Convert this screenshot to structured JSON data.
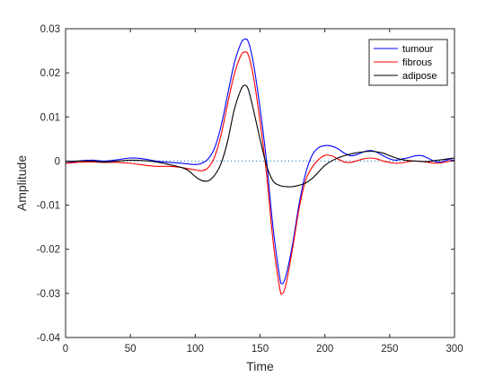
{
  "chart_data": {
    "type": "line",
    "title": "",
    "xlabel": "Time",
    "ylabel": "Amplitude",
    "xlim": [
      0,
      300
    ],
    "ylim": [
      -0.04,
      0.03
    ],
    "xticks": [
      0,
      50,
      100,
      150,
      200,
      250,
      300
    ],
    "xtick_labels": [
      "0",
      "50",
      "100",
      "150",
      "200",
      "250",
      "300"
    ],
    "yticks": [
      -0.04,
      -0.03,
      -0.02,
      -0.01,
      0,
      0.01,
      0.02,
      0.03
    ],
    "ytick_labels": [
      "-0.04",
      "-0.03",
      "-0.02",
      "-0.01",
      "0",
      "0.01",
      "0.02",
      "0.03"
    ],
    "grid": false,
    "legend_position": "top-right",
    "reference_line": {
      "y": 0,
      "style": "dotted",
      "color": "#0072BD"
    },
    "series": [
      {
        "name": "tumour",
        "color": "#0000FF",
        "points": [
          [
            0,
            -0.0005
          ],
          [
            10,
            0
          ],
          [
            20,
            0.0002
          ],
          [
            30,
            0
          ],
          [
            40,
            0.0003
          ],
          [
            50,
            0.0007
          ],
          [
            60,
            0.0005
          ],
          [
            70,
            0
          ],
          [
            80,
            -0.0003
          ],
          [
            90,
            -0.0005
          ],
          [
            100,
            -0.0008
          ],
          [
            105,
            -0.0005
          ],
          [
            110,
            0.0005
          ],
          [
            115,
            0.003
          ],
          [
            120,
            0.008
          ],
          [
            125,
            0.015
          ],
          [
            130,
            0.022
          ],
          [
            135,
            0.0265
          ],
          [
            138,
            0.0276
          ],
          [
            141,
            0.027
          ],
          [
            145,
            0.022
          ],
          [
            150,
            0.012
          ],
          [
            155,
            0
          ],
          [
            160,
            -0.015
          ],
          [
            165,
            -0.026
          ],
          [
            167,
            -0.0278
          ],
          [
            170,
            -0.026
          ],
          [
            175,
            -0.019
          ],
          [
            180,
            -0.01
          ],
          [
            185,
            -0.003
          ],
          [
            190,
            0.0012
          ],
          [
            195,
            0.003
          ],
          [
            200,
            0.0035
          ],
          [
            205,
            0.0034
          ],
          [
            210,
            0.0028
          ],
          [
            215,
            0.0018
          ],
          [
            220,
            0.0012
          ],
          [
            225,
            0.0015
          ],
          [
            230,
            0.0021
          ],
          [
            235,
            0.0024
          ],
          [
            240,
            0.002
          ],
          [
            245,
            0.0012
          ],
          [
            250,
            0.0005
          ],
          [
            255,
            0.0002
          ],
          [
            260,
            0.0005
          ],
          [
            265,
            0.0008
          ],
          [
            270,
            0.0012
          ],
          [
            275,
            0.0012
          ],
          [
            280,
            0.0006
          ],
          [
            285,
            -0.0001
          ],
          [
            290,
            -0.0002
          ],
          [
            295,
            0.0003
          ],
          [
            300,
            0.0002
          ]
        ]
      },
      {
        "name": "fibrous",
        "color": "#FF0000",
        "points": [
          [
            0,
            -0.0005
          ],
          [
            10,
            -0.0003
          ],
          [
            20,
            -0.0002
          ],
          [
            30,
            -0.0003
          ],
          [
            40,
            -0.0003
          ],
          [
            50,
            -0.0005
          ],
          [
            60,
            -0.0009
          ],
          [
            70,
            -0.0012
          ],
          [
            80,
            -0.0012
          ],
          [
            90,
            -0.0015
          ],
          [
            100,
            -0.002
          ],
          [
            105,
            -0.0022
          ],
          [
            110,
            -0.0015
          ],
          [
            115,
            0.001
          ],
          [
            120,
            0.006
          ],
          [
            125,
            0.013
          ],
          [
            130,
            0.0195
          ],
          [
            135,
            0.0238
          ],
          [
            138,
            0.0247
          ],
          [
            141,
            0.024
          ],
          [
            145,
            0.019
          ],
          [
            150,
            0.009
          ],
          [
            155,
            -0.003
          ],
          [
            160,
            -0.018
          ],
          [
            165,
            -0.0285
          ],
          [
            167,
            -0.0301
          ],
          [
            170,
            -0.028
          ],
          [
            175,
            -0.02
          ],
          [
            180,
            -0.011
          ],
          [
            185,
            -0.0045
          ],
          [
            190,
            -0.0015
          ],
          [
            195,
            0.0003
          ],
          [
            200,
            0.0013
          ],
          [
            205,
            0.0012
          ],
          [
            210,
            0.0005
          ],
          [
            215,
            -0.0002
          ],
          [
            220,
            -0.0003
          ],
          [
            225,
            0.0001
          ],
          [
            230,
            0.0005
          ],
          [
            235,
            0.0007
          ],
          [
            240,
            0.0005
          ],
          [
            245,
            0
          ],
          [
            250,
            -0.0003
          ],
          [
            255,
            -0.0005
          ],
          [
            260,
            -0.0004
          ],
          [
            265,
            -0.0001
          ],
          [
            270,
            0
          ],
          [
            275,
            -0.0001
          ],
          [
            280,
            -0.0003
          ],
          [
            285,
            -0.0005
          ],
          [
            290,
            -0.0004
          ],
          [
            295,
            -0.0001
          ],
          [
            300,
            0.0001
          ]
        ]
      },
      {
        "name": "adipose",
        "color": "#000000",
        "points": [
          [
            0,
            -0.0001
          ],
          [
            10,
            0
          ],
          [
            20,
            0
          ],
          [
            30,
            -0.0002
          ],
          [
            40,
            0
          ],
          [
            50,
            0.0002
          ],
          [
            60,
            0.0001
          ],
          [
            70,
            -0.0002
          ],
          [
            80,
            -0.0008
          ],
          [
            90,
            -0.0015
          ],
          [
            95,
            -0.0022
          ],
          [
            100,
            -0.0035
          ],
          [
            105,
            -0.0044
          ],
          [
            110,
            -0.0045
          ],
          [
            115,
            -0.0032
          ],
          [
            120,
            -0.0005
          ],
          [
            125,
            0.0045
          ],
          [
            130,
            0.0115
          ],
          [
            135,
            0.016
          ],
          [
            138,
            0.0172
          ],
          [
            141,
            0.0162
          ],
          [
            145,
            0.0115
          ],
          [
            150,
            0.005
          ],
          [
            155,
            -0.001
          ],
          [
            160,
            -0.0045
          ],
          [
            165,
            -0.0055
          ],
          [
            170,
            -0.0058
          ],
          [
            175,
            -0.0058
          ],
          [
            180,
            -0.0055
          ],
          [
            185,
            -0.005
          ],
          [
            190,
            -0.004
          ],
          [
            195,
            -0.0025
          ],
          [
            200,
            -0.001
          ],
          [
            205,
            0
          ],
          [
            210,
            0.0007
          ],
          [
            215,
            0.0012
          ],
          [
            220,
            0.0016
          ],
          [
            225,
            0.0019
          ],
          [
            230,
            0.0021
          ],
          [
            235,
            0.0022
          ],
          [
            240,
            0.0021
          ],
          [
            245,
            0.0018
          ],
          [
            250,
            0.0012
          ],
          [
            255,
            0.0007
          ],
          [
            260,
            0.0003
          ],
          [
            265,
            0.0001
          ],
          [
            270,
            0
          ],
          [
            275,
            -0.0001
          ],
          [
            280,
            -0.0001
          ],
          [
            285,
            0.0001
          ],
          [
            290,
            0.0003
          ],
          [
            295,
            0.0005
          ],
          [
            300,
            0.0007
          ]
        ]
      }
    ]
  }
}
